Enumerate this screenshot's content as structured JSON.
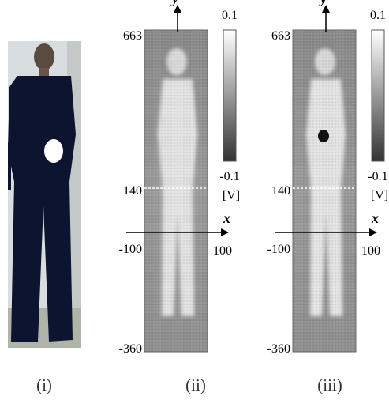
{
  "panels": [
    {
      "label": "(i)"
    },
    {
      "label": "(ii)",
      "y_axis": "y",
      "x_axis": "x",
      "y_top": "663",
      "y_mid": "140",
      "x_left": "-100",
      "x_right": "100",
      "y_bottom": "-360",
      "colorbar_max": "0.1",
      "colorbar_min": "-0.1",
      "unit": "[V]"
    },
    {
      "label": "(iii)",
      "y_axis": "y",
      "x_axis": "x",
      "y_top": "663",
      "y_mid": "140",
      "x_left": "-100",
      "x_right": "100",
      "y_bottom": "-360",
      "colorbar_max": "0.1",
      "colorbar_min": "-0.1",
      "unit": "[V]"
    }
  ]
}
